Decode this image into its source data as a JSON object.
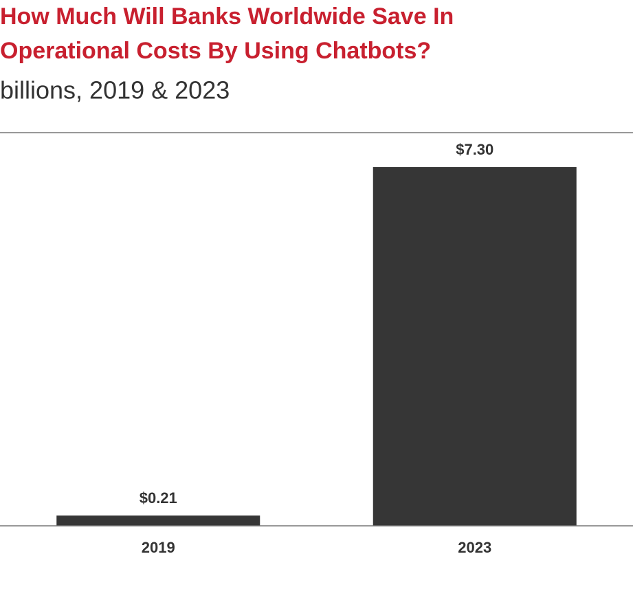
{
  "chart_data": {
    "type": "bar",
    "title": "How Much Will Banks Worldwide Save In Operational Costs By Using Chatbots?",
    "subtitle": "billions, 2019 & 2023",
    "categories": [
      "2019",
      "2023"
    ],
    "values": [
      0.21,
      7.3
    ],
    "value_labels": [
      "$0.21",
      "$7.30"
    ],
    "color": "#363636",
    "ylim": [
      0,
      8
    ]
  }
}
